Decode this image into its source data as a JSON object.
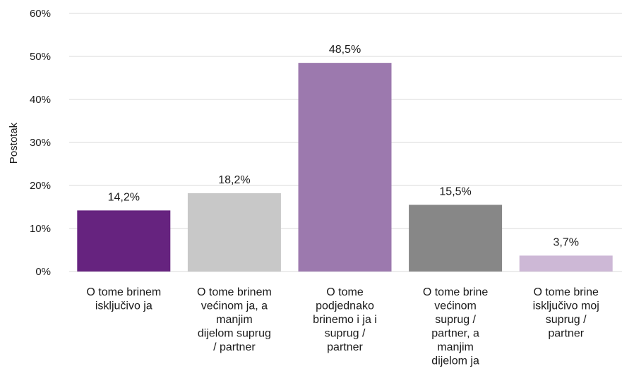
{
  "chart_data": {
    "type": "bar",
    "ylabel": "Postotak",
    "ylim": [
      0,
      60
    ],
    "yticks": [
      "0%",
      "10%",
      "20%",
      "30%",
      "40%",
      "50%",
      "60%"
    ],
    "grid": true,
    "categories": [
      [
        "O tome brinem",
        "isključivo ja"
      ],
      [
        "O tome brinem",
        "većinom ja, a",
        "manjim",
        "dijelom suprug",
        "/ partner"
      ],
      [
        "O tome",
        "podjednako",
        "brinemo i ja i",
        "suprug /",
        "partner"
      ],
      [
        "O tome brine",
        "većinom",
        "suprug /",
        "partner, a",
        "manjim",
        "dijelom ja"
      ],
      [
        "O tome brine",
        "isključivo moj",
        "suprug /",
        "partner"
      ]
    ],
    "values": [
      14.2,
      18.2,
      48.5,
      15.5,
      3.7
    ],
    "data_labels": [
      "14,2%",
      "18,2%",
      "48,5%",
      "15,5%",
      "3,7%"
    ],
    "colors": [
      "#66237f",
      "#c8c8c8",
      "#9c79ae",
      "#878787",
      "#cdb8d6"
    ]
  }
}
